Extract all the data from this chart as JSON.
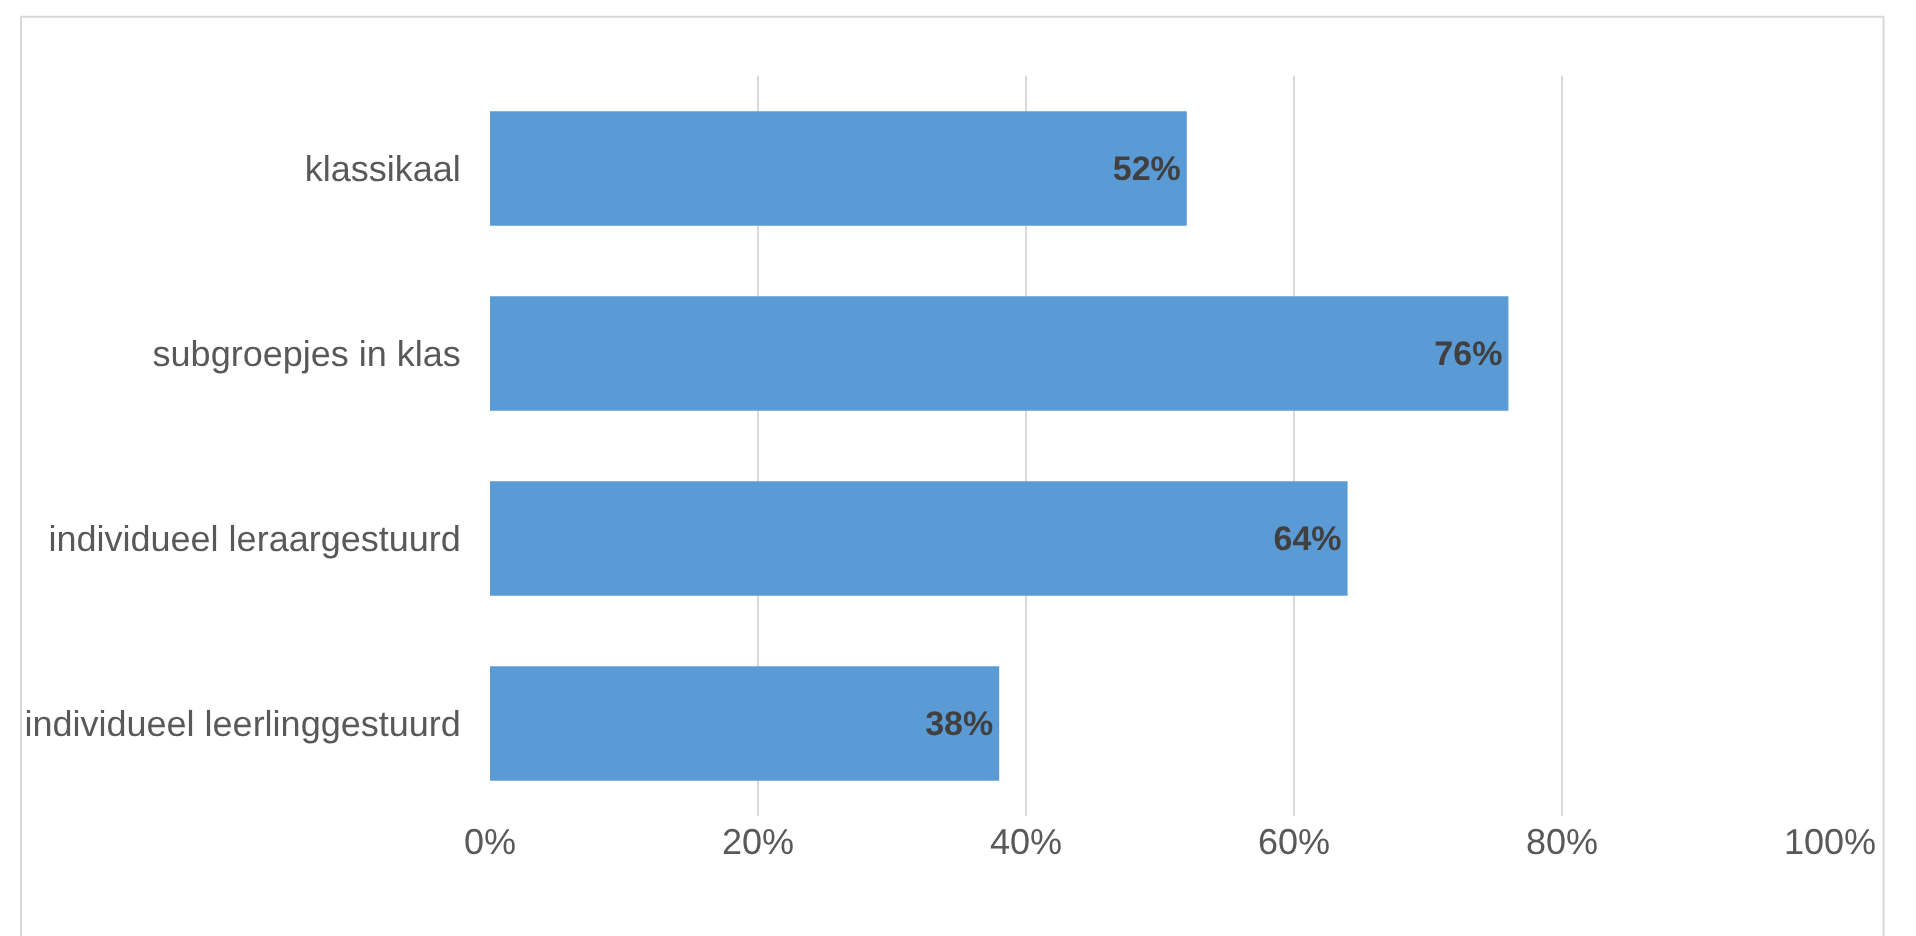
{
  "chart_data": {
    "type": "bar",
    "orientation": "horizontal",
    "categories": [
      "klassikaal",
      "subgroepjes in klas",
      "individueel leraargestuurd",
      "individueel leerlinggestuurd"
    ],
    "values": [
      52,
      76,
      64,
      38
    ],
    "color": "#5b9bd5",
    "value_labels": [
      "52%",
      "76%",
      "64%",
      "38%"
    ],
    "xlim": [
      0,
      100
    ],
    "xticks": [
      {
        "value": 0,
        "label": "0%"
      },
      {
        "value": 20,
        "label": "20%"
      },
      {
        "value": 40,
        "label": "40%"
      },
      {
        "value": 60,
        "label": "60%"
      },
      {
        "value": 80,
        "label": "80%"
      },
      {
        "value": 100,
        "label": "100%"
      }
    ],
    "grid": "x",
    "legend": false
  }
}
